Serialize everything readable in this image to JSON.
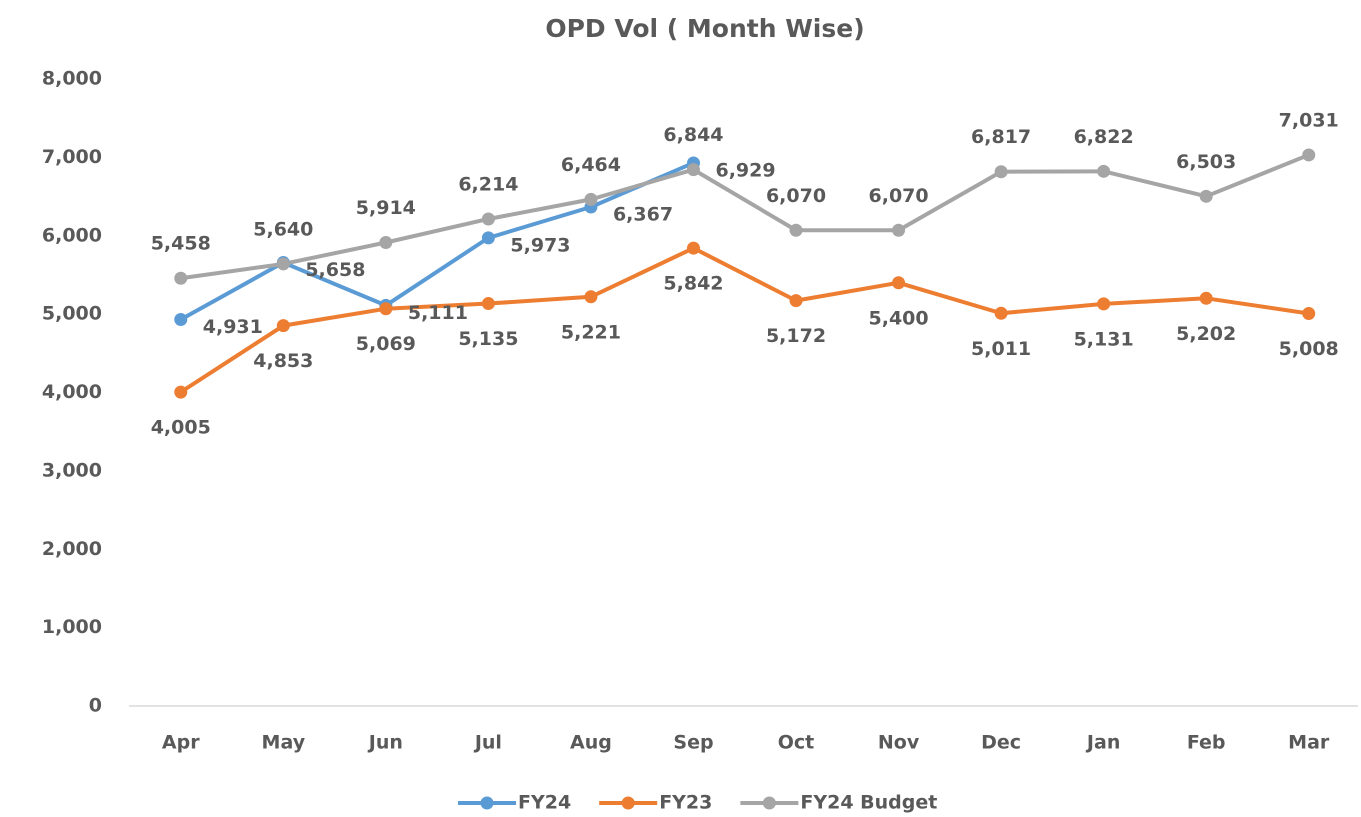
{
  "chart_data": {
    "type": "line",
    "title": "OPD Vol ( Month Wise)",
    "categories": [
      "Apr",
      "May",
      "Jun",
      "Jul",
      "Aug",
      "Sep",
      "Oct",
      "Nov",
      "Dec",
      "Jan",
      "Feb",
      "Mar"
    ],
    "series": [
      {
        "name": "FY24",
        "color": "#5b9bd5",
        "label_position": "right",
        "values": [
          4931,
          5658,
          5111,
          5973,
          6367,
          6929,
          null,
          null,
          null,
          null,
          null,
          null
        ],
        "value_labels": [
          "4,931",
          "5,658",
          "5,111",
          "5,973",
          "6,367",
          "6,929",
          null,
          null,
          null,
          null,
          null,
          null
        ]
      },
      {
        "name": "FY23",
        "color": "#ed7d31",
        "label_position": "below",
        "values": [
          4005,
          4853,
          5069,
          5135,
          5221,
          5842,
          5172,
          5400,
          5011,
          5131,
          5202,
          5008
        ],
        "value_labels": [
          "4,005",
          "4,853",
          "5,069",
          "5,135",
          "5,221",
          "5,842",
          "5,172",
          "5,400",
          "5,011",
          "5,131",
          "5,202",
          "5,008"
        ]
      },
      {
        "name": "FY24 Budget",
        "color": "#a5a5a5",
        "label_position": "above",
        "values": [
          5458,
          5640,
          5914,
          6214,
          6464,
          6844,
          6070,
          6070,
          6817,
          6822,
          6503,
          7031
        ],
        "value_labels": [
          "5,458",
          "5,640",
          "5,914",
          "6,214",
          "6,464",
          "6,844",
          "6,070",
          "6,070",
          "6,817",
          "6,822",
          "6,503",
          "7,031"
        ]
      }
    ],
    "ylim": [
      0,
      8000
    ],
    "yticks": [
      0,
      {
        "value": 1000,
        "label": "1,000"
      },
      {
        "value": 2000,
        "label": "2,000"
      },
      {
        "value": 3000,
        "label": "3,000"
      },
      {
        "value": 4000,
        "label": "4,000"
      },
      {
        "value": 5000,
        "label": "5,000"
      },
      {
        "value": 6000,
        "label": "6,000"
      },
      {
        "value": 7000,
        "label": "7,000"
      },
      {
        "value": 8000,
        "label": "8,000"
      }
    ],
    "grid": false,
    "legend": "bottom"
  }
}
